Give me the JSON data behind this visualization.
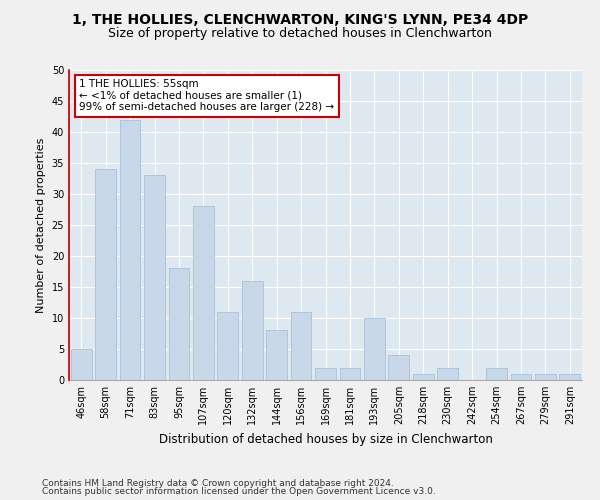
{
  "title_line1": "1, THE HOLLIES, CLENCHWARTON, KING'S LYNN, PE34 4DP",
  "title_line2": "Size of property relative to detached houses in Clenchwarton",
  "xlabel": "Distribution of detached houses by size in Clenchwarton",
  "ylabel": "Number of detached properties",
  "categories": [
    "46sqm",
    "58sqm",
    "71sqm",
    "83sqm",
    "95sqm",
    "107sqm",
    "120sqm",
    "132sqm",
    "144sqm",
    "156sqm",
    "169sqm",
    "181sqm",
    "193sqm",
    "205sqm",
    "218sqm",
    "230sqm",
    "242sqm",
    "254sqm",
    "267sqm",
    "279sqm",
    "291sqm"
  ],
  "values": [
    5,
    34,
    42,
    33,
    18,
    28,
    11,
    16,
    8,
    11,
    2,
    2,
    10,
    4,
    1,
    2,
    0,
    2,
    1,
    1,
    1
  ],
  "bar_color": "#c8d8e8",
  "bar_edge_color": "#a8c0d8",
  "annotation_box_color": "#cc0000",
  "annotation_line1": "1 THE HOLLIES: 55sqm",
  "annotation_line2": "← <1% of detached houses are smaller (1)",
  "annotation_line3": "99% of semi-detached houses are larger (228) →",
  "ylim": [
    0,
    50
  ],
  "yticks": [
    0,
    5,
    10,
    15,
    20,
    25,
    30,
    35,
    40,
    45,
    50
  ],
  "footer_line1": "Contains HM Land Registry data © Crown copyright and database right 2024.",
  "footer_line2": "Contains public sector information licensed under the Open Government Licence v3.0.",
  "fig_bg_color": "#f0f0f0",
  "plot_bg_color": "#dde8f0",
  "title_fontsize": 10,
  "subtitle_fontsize": 9,
  "xlabel_fontsize": 8.5,
  "ylabel_fontsize": 8,
  "tick_fontsize": 7,
  "footer_fontsize": 6.5,
  "annotation_fontsize": 7.5
}
